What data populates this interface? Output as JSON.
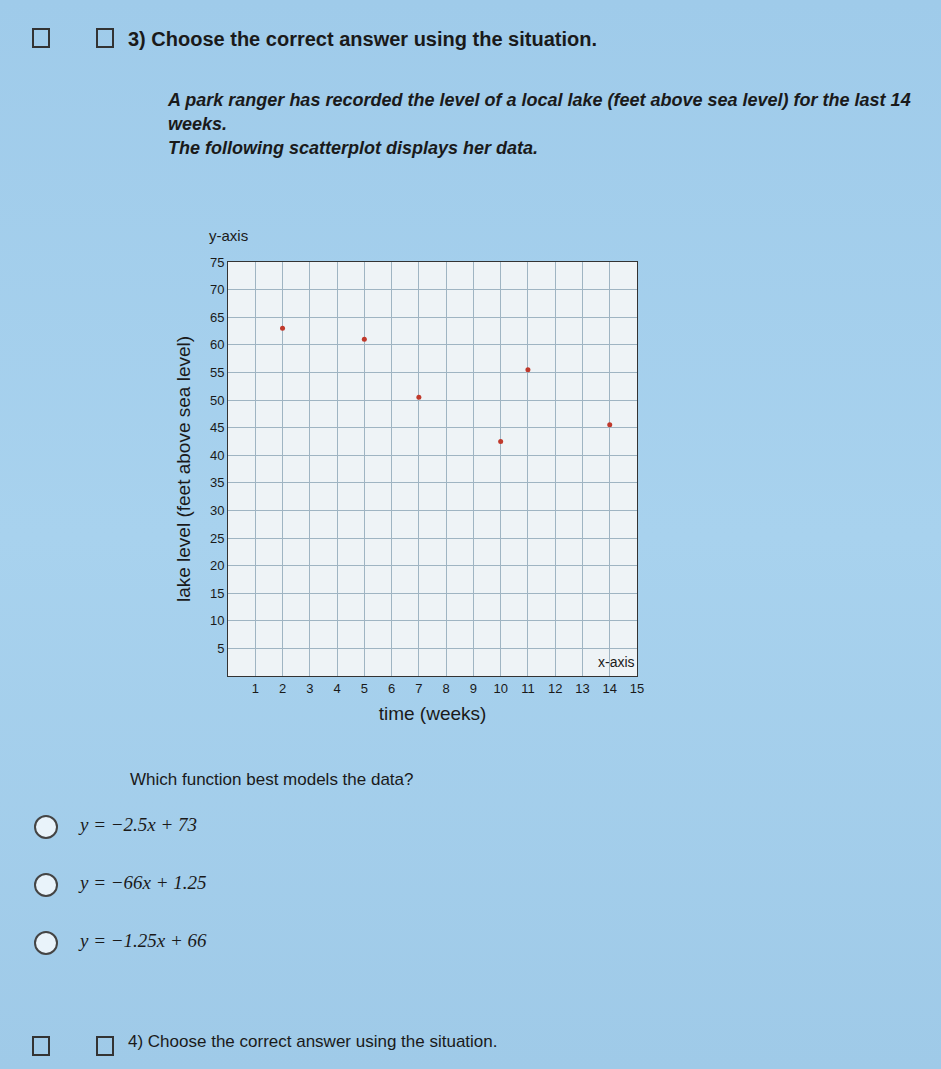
{
  "page": {
    "question": {
      "number": "3)",
      "instruction": "Choose the correct answer using the situation."
    },
    "situation": [
      "A park ranger has recorded the level of a local lake (feet above sea level) for the last 14 weeks.",
      "The following scatterplot displays her data."
    ],
    "prompt": "Which function best models the data?",
    "options": [
      "y = −2.5x + 73",
      "y = −66x + 1.25",
      "y = −1.25x + 66"
    ],
    "next_question": {
      "number": "4)",
      "instruction": "Choose the correct answer using the situation."
    }
  },
  "chart_data": {
    "type": "scatter",
    "x_label": "time (weeks)",
    "y_label": "lake level (feet above sea level)",
    "x_axis_name": "x-axis",
    "y_axis_name": "y-axis",
    "x": [
      2,
      5,
      7,
      10,
      11,
      14
    ],
    "values": [
      63,
      61,
      50.5,
      42.5,
      55.5,
      45.5
    ],
    "color": "#c0392b",
    "marker": "circle",
    "xlim": [
      0,
      15
    ],
    "ylim": [
      0,
      75
    ],
    "xticks": [
      1,
      2,
      3,
      4,
      5,
      6,
      7,
      8,
      9,
      10,
      11,
      12,
      13,
      14,
      15
    ],
    "yticks": [
      5,
      10,
      15,
      20,
      25,
      30,
      35,
      40,
      45,
      50,
      55,
      60,
      65,
      70,
      75
    ],
    "grid": true
  }
}
